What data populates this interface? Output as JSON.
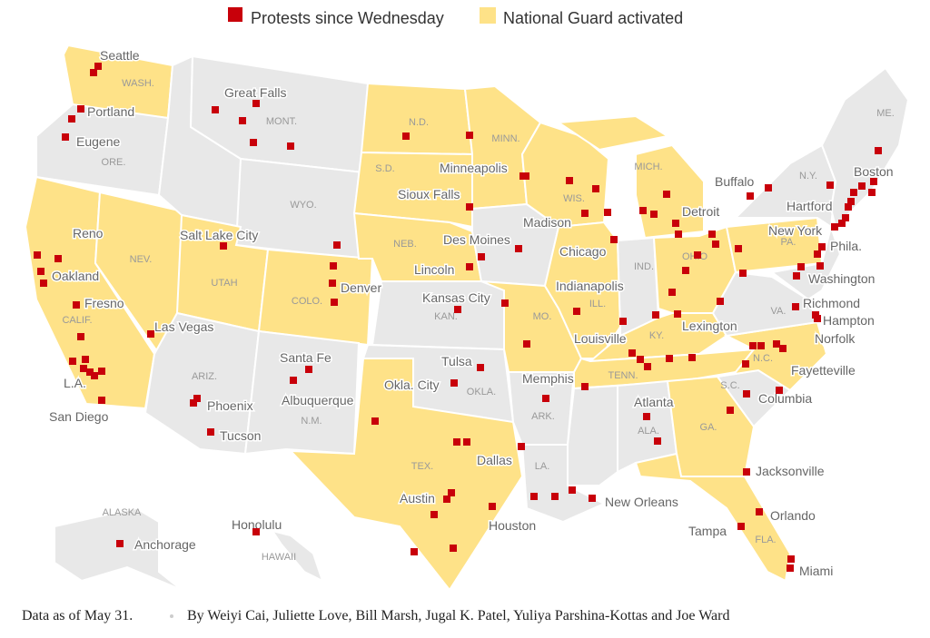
{
  "legend": {
    "protests": "Protests since Wednesday",
    "guard": "National Guard activated"
  },
  "states": [
    "WASH.",
    "ORE.",
    "CALIF.",
    "NEV.",
    "MONT.",
    "WYO.",
    "UTAH",
    "COLO.",
    "ARIZ.",
    "N.M.",
    "N.D.",
    "S.D.",
    "NEB.",
    "KAN.",
    "OKLA.",
    "TEX.",
    "MINN.",
    "MO.",
    "ARK.",
    "LA.",
    "WIS.",
    "MICH.",
    "ILL.",
    "IND.",
    "OHIO",
    "KY.",
    "TENN.",
    "ALA.",
    "GA.",
    "FLA.",
    "S.C.",
    "N.C.",
    "VA.",
    "PA.",
    "N.Y.",
    "ME.",
    "ALASKA",
    "HAWAII"
  ],
  "cities": [
    "Seattle",
    "Portland",
    "Eugene",
    "Great Falls",
    "Reno",
    "Oakland",
    "Fresno",
    "Salt Lake City",
    "Las Vegas",
    "L.A.",
    "San Diego",
    "Phoenix",
    "Tucson",
    "Santa Fe",
    "Albuquerque",
    "Denver",
    "Sioux Falls",
    "Minneapolis",
    "Lincoln",
    "Des Moines",
    "Kansas City",
    "Tulsa",
    "Okla. City",
    "Dallas",
    "Austin",
    "Houston",
    "Madison",
    "Chicago",
    "Indianapolis",
    "Louisville",
    "Memphis",
    "New Orleans",
    "Lexington",
    "Atlanta",
    "Detroit",
    "Buffalo",
    "Hartford",
    "Boston",
    "New York",
    "Phila.",
    "Washington",
    "Richmond",
    "Hampton",
    "Norfolk",
    "Fayetteville",
    "Columbia",
    "Jacksonville",
    "Orlando",
    "Tampa",
    "Miami",
    "Honolulu",
    "Anchorage"
  ],
  "footer": {
    "date": "Data as of May 31.",
    "byline": "By Weiyi Cai, Juliette Love, Bill Marsh, Jugal K. Patel, Yuliya Parshina-Kottas and Joe Ward"
  }
}
